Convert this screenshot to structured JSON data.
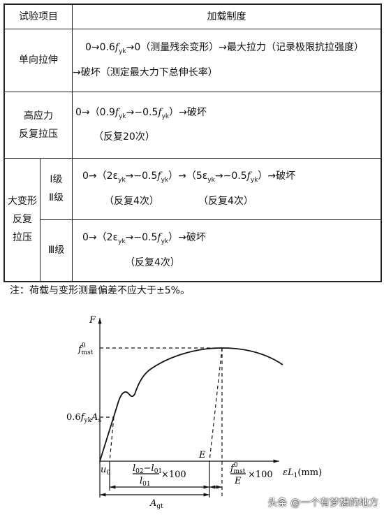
{
  "table": {
    "header": [
      "试验项目",
      "加载制度"
    ],
    "rows": [
      {
        "label": "单向拉伸",
        "lines": [
          [
            "0→0.6",
            "f",
            "yk",
            "→0（测量残余变形）→最大拉力（记录极限抗拉强度）"
          ],
          [
            "→破坏（测定最大力下总伸长率）"
          ]
        ]
      },
      {
        "label": [
          "高应力",
          "反复拉压"
        ],
        "lines": [
          [
            "0→（0.9",
            "f",
            "yk",
            "→−0.5",
            "f",
            "yk",
            "）→破坏"
          ],
          [
            "（反复20次）"
          ]
        ]
      },
      {
        "label": [
          "大变形",
          "反复",
          "拉压"
        ],
        "sub": [
          {
            "grade": [
              "Ⅰ级",
              "Ⅱ级"
            ],
            "lines": [
              [
                "0→（2ε",
                "yk",
                "→−0.5",
                "f",
                "yk",
                "）→（5ε",
                "yk",
                "→−0.5",
                "f",
                "yk",
                "）→破坏"
              ],
              [
                "（反复4次）",
                "（反复4次）"
              ]
            ]
          },
          {
            "grade": [
              "Ⅲ级"
            ],
            "lines": [
              [
                "0→（2ε",
                "yk",
                "→−0.5",
                "f",
                "yk",
                "）→破坏"
              ],
              [
                "（反复4次）"
              ]
            ]
          }
        ]
      }
    ]
  },
  "note": "注：荷载与变形测量偏差不应大于±5%。",
  "diagram": {
    "y_axis": "F",
    "x_axis": [
      "ε",
      "L",
      "1",
      "(mm)"
    ],
    "peak": [
      "f",
      "0",
      "mst"
    ],
    "yield": [
      "0.6",
      "f",
      "yk",
      "A",
      "s"
    ],
    "u0": [
      "u",
      "0"
    ],
    "fraction1": {
      "num": [
        "l",
        "02",
        "−",
        "l",
        "01"
      ],
      "den": [
        "l",
        "01"
      ],
      "factor": "×100"
    },
    "e_label": "E",
    "fraction2": {
      "num": [
        "f",
        "0",
        "mst"
      ],
      "den": "E",
      "factor": "×100"
    },
    "agt": [
      "A",
      "gt"
    ]
  },
  "watermark": "头条 @一个有梦想的地方"
}
